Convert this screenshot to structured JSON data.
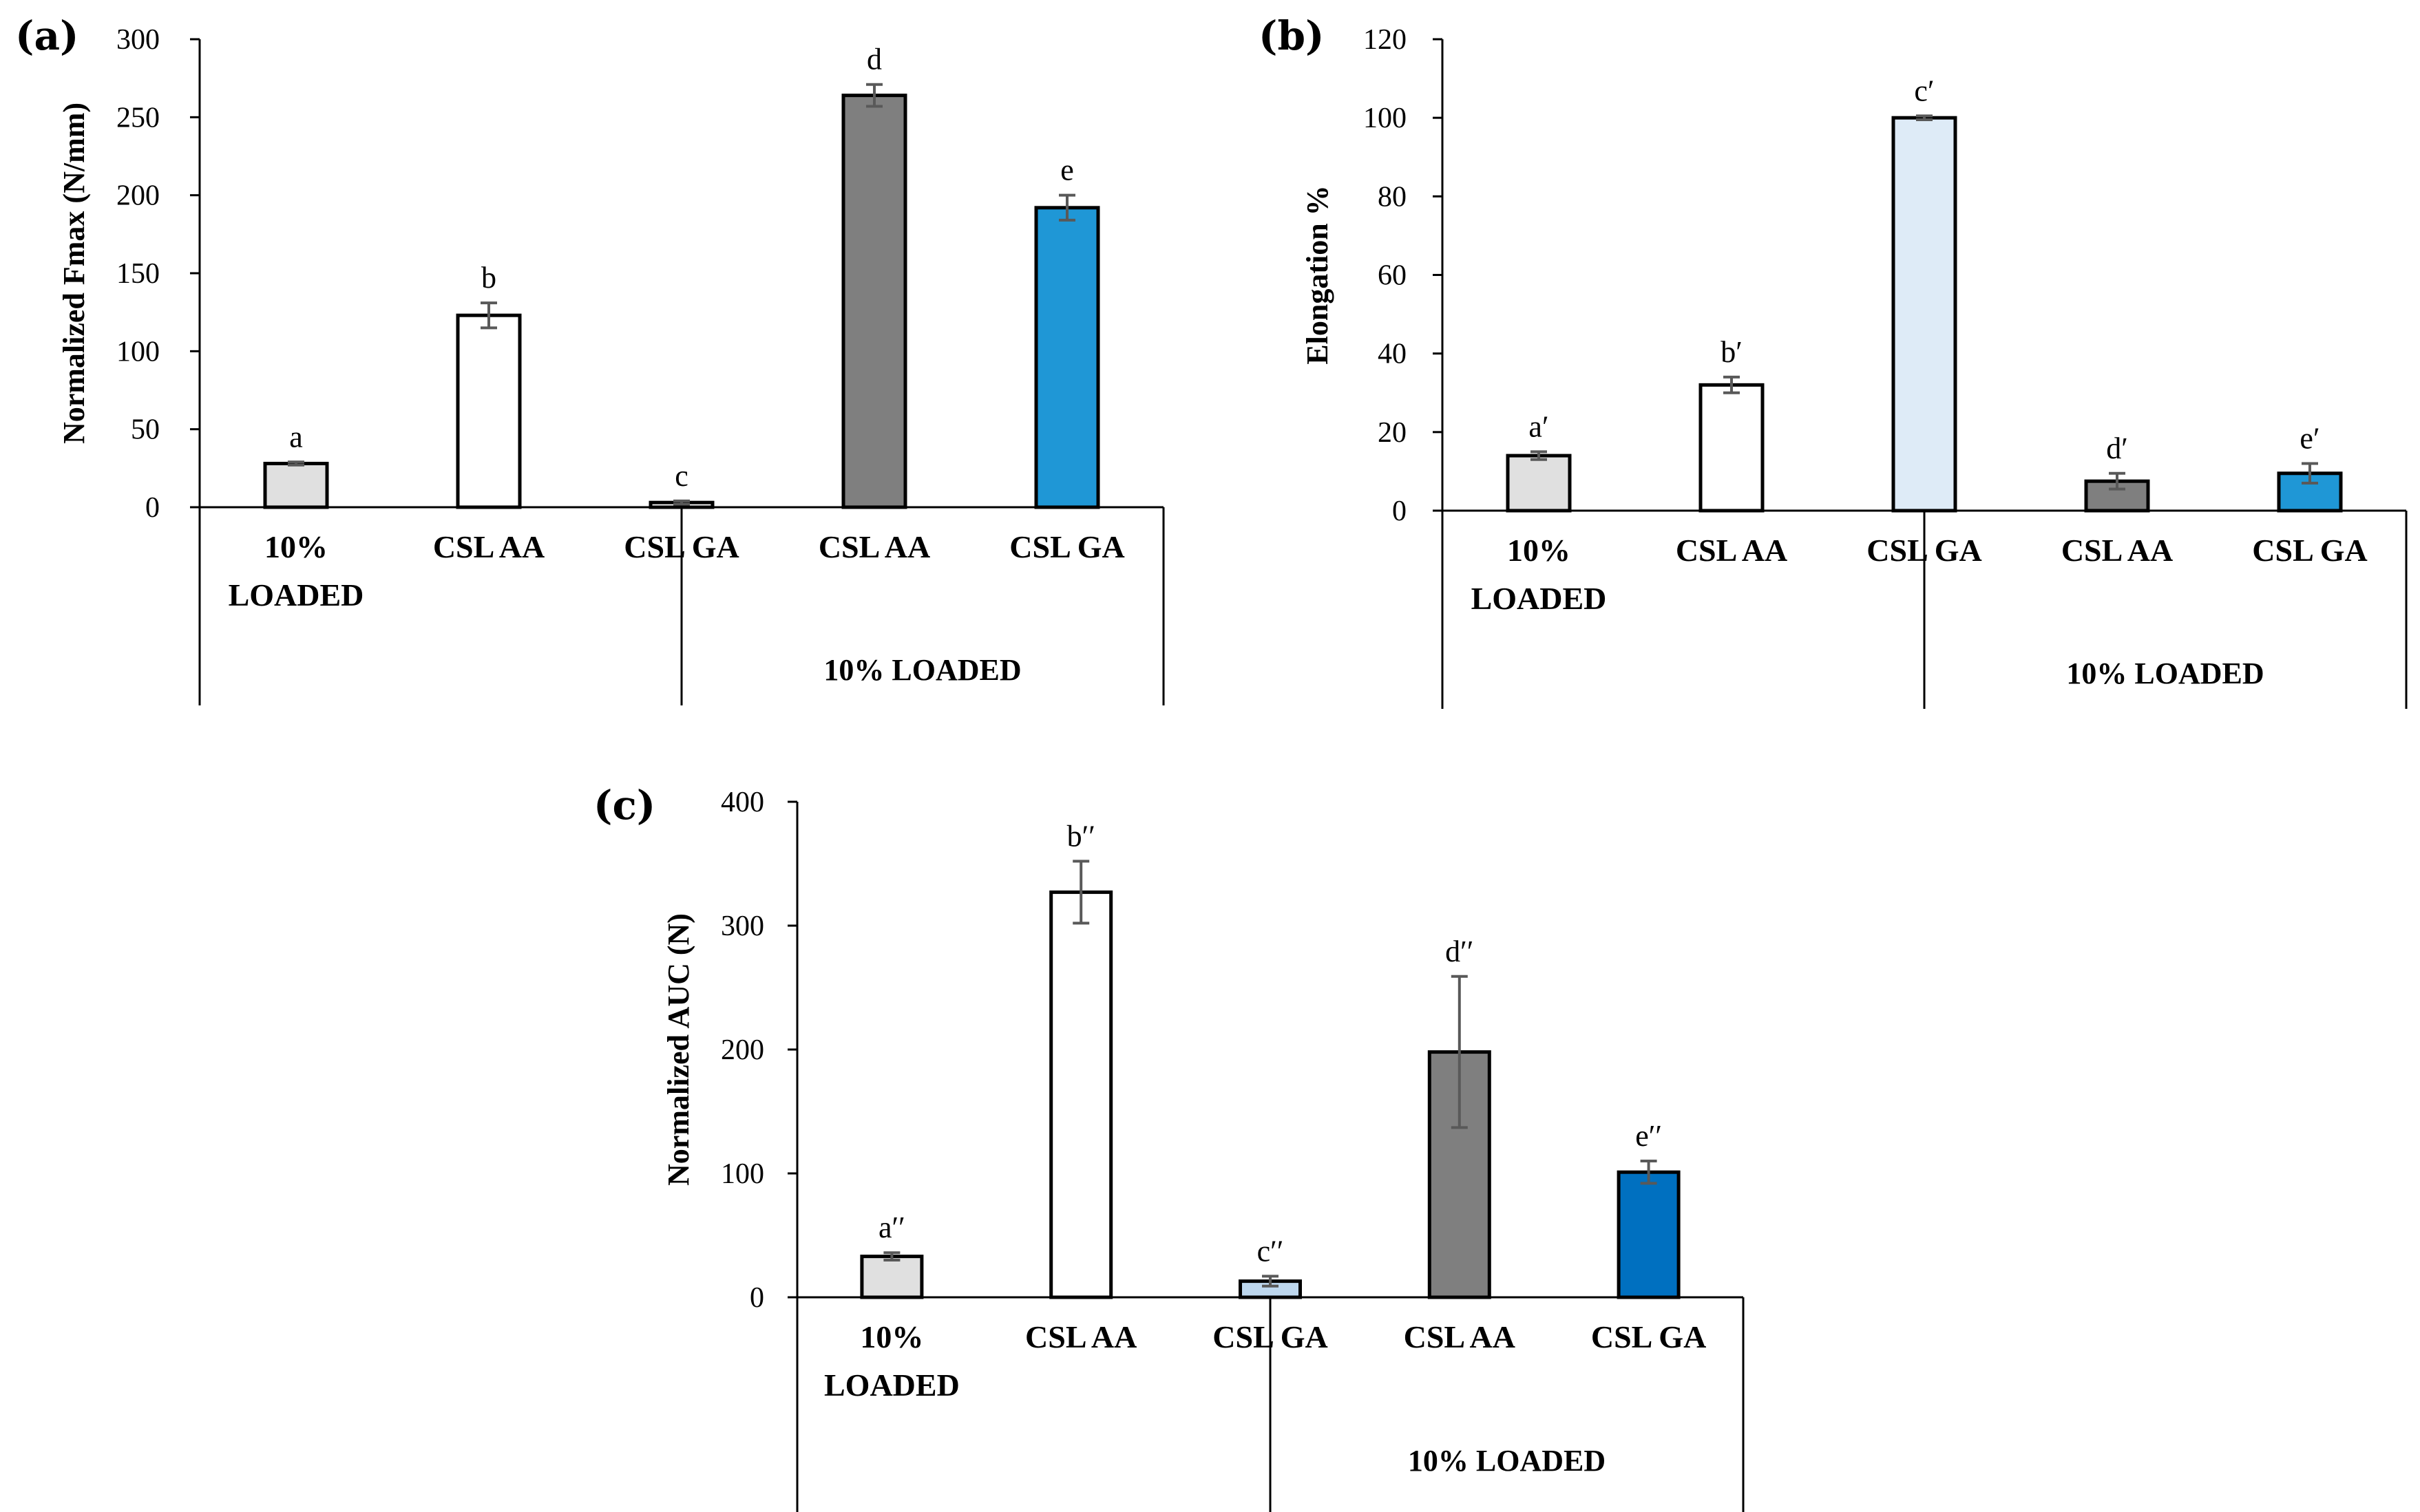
{
  "chart_data": [
    {
      "type": "bar",
      "panel_label": "(a)",
      "ylabel": "Normalized Fmax (N/mm)",
      "ylim": [
        0,
        300
      ],
      "yticks": [
        "0",
        "50",
        "100",
        "150",
        "200",
        "250",
        "300"
      ],
      "categories": [
        "10%\nLOADED",
        "CSL AA",
        "CSL GA",
        "CSL AA",
        "CSL GA"
      ],
      "group_label": "10% LOADED",
      "values": [
        28,
        123,
        3,
        264,
        192
      ],
      "errors": [
        1,
        8,
        1,
        7,
        8
      ],
      "letters": [
        "a",
        "b",
        "c",
        "d",
        "e"
      ],
      "colors": [
        "#e0e0e0",
        "#ffffff",
        "#ffffff",
        "#7f7f7f",
        "#1f97d6"
      ]
    },
    {
      "type": "bar",
      "panel_label": "(b)",
      "ylabel": "Elongation %",
      "ylim": [
        0,
        120
      ],
      "yticks": [
        "0",
        "20",
        "40",
        "60",
        "80",
        "100",
        "120"
      ],
      "categories": [
        "10%\nLOADED",
        "CSL AA",
        "CSL GA",
        "CSL AA",
        "CSL GA"
      ],
      "group_label": "10% LOADED",
      "values": [
        14,
        32,
        100,
        7.5,
        9.5
      ],
      "errors": [
        1,
        2,
        0.5,
        2,
        2.5
      ],
      "letters": [
        "a′",
        "b′",
        "c′",
        "d′",
        "e′"
      ],
      "colors": [
        "#e0e0e0",
        "#ffffff",
        "#deebf7",
        "#7f7f7f",
        "#1f97d6"
      ]
    },
    {
      "type": "bar",
      "panel_label": "(c)",
      "ylabel": "Normalized AUC (N)",
      "ylim": [
        0,
        400
      ],
      "yticks": [
        "0",
        "100",
        "200",
        "300",
        "400"
      ],
      "categories": [
        "10%\nLOADED",
        "CSL AA",
        "CSL GA",
        "CSL AA",
        "CSL GA"
      ],
      "group_label": "10% LOADED",
      "values": [
        33,
        327,
        13,
        198,
        101
      ],
      "errors": [
        3,
        25,
        4,
        61,
        9
      ],
      "letters": [
        "a′′",
        "b′′",
        "c′′",
        "d′′",
        "e′′"
      ],
      "colors": [
        "#e0e0e0",
        "#ffffff",
        "#bdd7ee",
        "#7f7f7f",
        "#0070c0"
      ]
    }
  ]
}
